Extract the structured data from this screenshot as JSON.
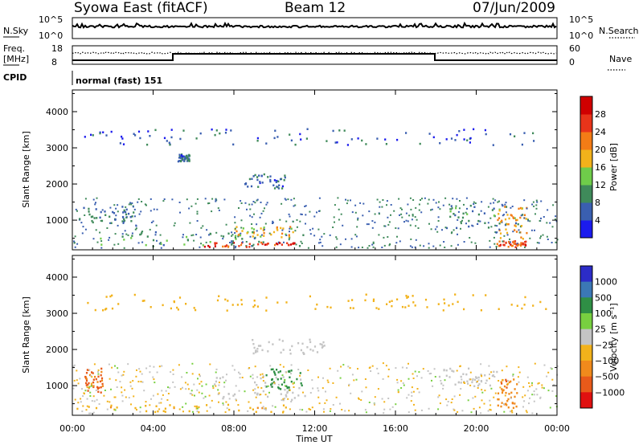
{
  "header": {
    "title": "Syowa East (fitACF)",
    "beam": "Beam 12",
    "date": "07/Jun/2009"
  },
  "noise_panel": {
    "left_label": "N.Sky",
    "right_label": "N.Search",
    "left_ticks": [
      "10^5",
      "10^0"
    ],
    "right_ticks": [
      "10^5",
      "10^0"
    ]
  },
  "freq_panel": {
    "left_label_1": "Freq.",
    "left_label_2": "[MHz]",
    "right_label": "Nave",
    "left_ticks": [
      "18",
      "8"
    ],
    "right_ticks": [
      "60",
      "0"
    ]
  },
  "cpid_panel": {
    "label": "CPID",
    "value": "normal (fast) 151"
  },
  "x_axis": {
    "label": "Time UT",
    "ticks": [
      "00:00",
      "04:00",
      "08:00",
      "12:00",
      "16:00",
      "20:00",
      "00:00"
    ]
  },
  "y_axis": {
    "label": "Slant Range [km]",
    "ticks": [
      "1000",
      "2000",
      "3000",
      "4000"
    ]
  },
  "power_scale": {
    "label": "Power [dB]",
    "ticks": [
      "4",
      "8",
      "12",
      "16",
      "20",
      "24",
      "28"
    ],
    "colors": [
      "#1b1bee",
      "#3a5fb0",
      "#3f8a5a",
      "#6fcc4a",
      "#f2b21b",
      "#f37c16",
      "#e8341a",
      "#d00000"
    ]
  },
  "velocity_scale": {
    "label": "Velocity [m s⁻¹]",
    "ticks": [
      "1000",
      "500",
      "100",
      "25",
      "−25",
      "−100",
      "−500",
      "−1000"
    ],
    "colors": [
      "#2c2cc8",
      "#3b78b5",
      "#2f8f45",
      "#78d040",
      "#c4c4c4",
      "#f2b21b",
      "#f08a1c",
      "#e85a1a",
      "#e01010"
    ]
  },
  "chart_data": [
    {
      "type": "heatmap",
      "name": "Power",
      "xlim": [
        "00:00",
        "24:00"
      ],
      "ylim_km": [
        180,
        4600
      ],
      "clim_db": [
        0,
        32
      ],
      "regions": [
        {
          "t": [
            0.3,
            3.0
          ],
          "r": [
            900,
            1400
          ],
          "v": 8
        },
        {
          "t": [
            0.0,
            11.5
          ],
          "r": [
            300,
            700
          ],
          "v": 10
        },
        {
          "t": [
            6.5,
            11.0
          ],
          "r": [
            280,
            420
          ],
          "v": 26
        },
        {
          "t": [
            8.0,
            11.0
          ],
          "r": [
            550,
            850
          ],
          "v": 18
        },
        {
          "t": [
            8.5,
            10.5
          ],
          "r": [
            1900,
            2300
          ],
          "v": 7
        },
        {
          "t": [
            5.2,
            5.8
          ],
          "r": [
            2650,
            2850
          ],
          "v": 7
        },
        {
          "t": [
            18.5,
            22.5
          ],
          "r": [
            800,
            1500
          ],
          "v": 10
        },
        {
          "t": [
            21.0,
            22.5
          ],
          "r": [
            500,
            1400
          ],
          "v": 20
        },
        {
          "t": [
            21.0,
            22.5
          ],
          "r": [
            280,
            450
          ],
          "v": 25
        },
        {
          "t": [
            0.5,
            23.5
          ],
          "r": [
            3100,
            3550
          ],
          "v": 6
        }
      ]
    },
    {
      "type": "heatmap",
      "name": "Velocity",
      "xlim": [
        "00:00",
        "24:00"
      ],
      "ylim_km": [
        180,
        4600
      ],
      "clim_ms": [
        -1000,
        1000
      ],
      "regions": [
        {
          "t": [
            0.0,
            12.0
          ],
          "r": [
            280,
            500
          ],
          "v": -75
        },
        {
          "t": [
            7.0,
            11.5
          ],
          "r": [
            600,
            1300
          ],
          "v": 0
        },
        {
          "t": [
            9.5,
            11.5
          ],
          "r": [
            900,
            1500
          ],
          "v": 150
        },
        {
          "t": [
            0.6,
            1.5
          ],
          "r": [
            800,
            1500
          ],
          "v": -600
        },
        {
          "t": [
            8.5,
            12.5
          ],
          "r": [
            1900,
            2300
          ],
          "v": 0
        },
        {
          "t": [
            18.0,
            21.0
          ],
          "r": [
            1000,
            1500
          ],
          "v": 0
        },
        {
          "t": [
            21.0,
            22.0
          ],
          "r": [
            400,
            1200
          ],
          "v": -400
        },
        {
          "t": [
            0.5,
            23.5
          ],
          "r": [
            3100,
            3550
          ],
          "v": -60
        }
      ]
    }
  ]
}
